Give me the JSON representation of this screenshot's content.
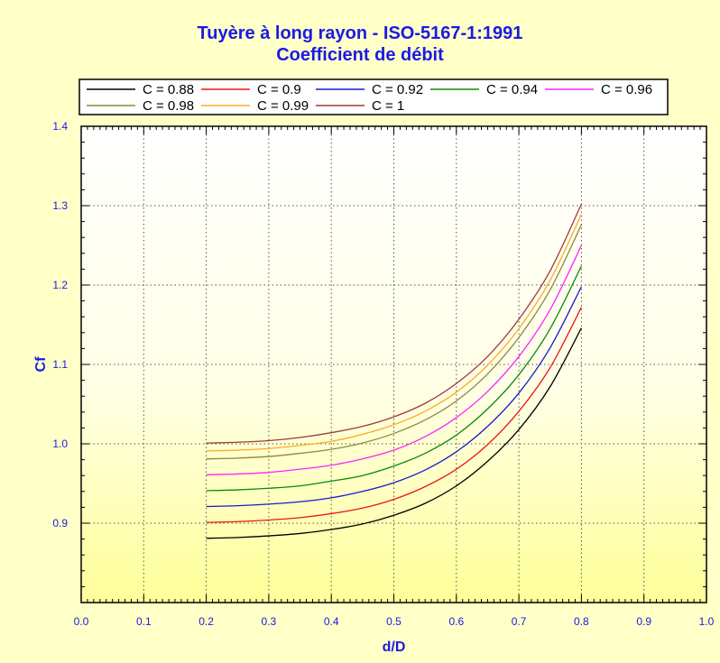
{
  "chart_data": {
    "type": "line",
    "title": "Tuyère à long rayon - ISO-5167-1:1991",
    "subtitle": "Coefficient de débit",
    "xlabel": "d/D",
    "ylabel": "Cf",
    "xlim": [
      0.0,
      1.0
    ],
    "ylim": [
      0.8,
      1.4
    ],
    "x_ticks": [
      "0.0",
      "0.1",
      "0.2",
      "0.3",
      "0.4",
      "0.5",
      "0.6",
      "0.7",
      "0.8",
      "0.9",
      "1.0"
    ],
    "y_ticks": [
      "0.9",
      "1.0",
      "1.1",
      "1.2",
      "1.3",
      "1.4"
    ],
    "grid": true,
    "legend_placement": "top",
    "x": [
      0.2,
      0.25,
      0.3,
      0.35,
      0.4,
      0.45,
      0.5,
      0.55,
      0.6,
      0.65,
      0.7,
      0.75,
      0.8
    ],
    "series": [
      {
        "name": "C = 0.88",
        "color": "#000000",
        "values": [
          0.881,
          0.882,
          0.884,
          0.887,
          0.892,
          0.899,
          0.91,
          0.925,
          0.947,
          0.978,
          1.018,
          1.072,
          1.146
        ]
      },
      {
        "name": "C = 0.9",
        "color": "#e81818",
        "values": [
          0.901,
          0.902,
          0.904,
          0.907,
          0.912,
          0.919,
          0.93,
          0.946,
          0.968,
          0.999,
          1.041,
          1.096,
          1.172
        ]
      },
      {
        "name": "C = 0.92",
        "color": "#1a1ad0",
        "values": [
          0.921,
          0.922,
          0.924,
          0.927,
          0.932,
          0.94,
          0.951,
          0.967,
          0.99,
          1.022,
          1.064,
          1.121,
          1.198
        ]
      },
      {
        "name": "C = 0.94",
        "color": "#0a8a0a",
        "values": [
          0.941,
          0.942,
          0.944,
          0.947,
          0.953,
          0.96,
          0.972,
          0.988,
          1.011,
          1.044,
          1.087,
          1.145,
          1.224
        ]
      },
      {
        "name": "C = 0.96",
        "color": "#ff22ff",
        "values": [
          0.961,
          0.962,
          0.964,
          0.968,
          0.973,
          0.981,
          0.992,
          1.009,
          1.033,
          1.066,
          1.11,
          1.169,
          1.25
        ]
      },
      {
        "name": "C = 0.98",
        "color": "#8a8a3a",
        "values": [
          0.981,
          0.982,
          0.984,
          0.988,
          0.993,
          1.001,
          1.013,
          1.03,
          1.054,
          1.088,
          1.134,
          1.194,
          1.276
        ]
      },
      {
        "name": "C = 0.99",
        "color": "#ffaa22",
        "values": [
          0.991,
          0.992,
          0.994,
          0.998,
          1.003,
          1.012,
          1.024,
          1.041,
          1.065,
          1.099,
          1.145,
          1.206,
          1.289
        ]
      },
      {
        "name": "C = 1",
        "color": "#a03a3a",
        "values": [
          1.001,
          1.002,
          1.004,
          1.008,
          1.014,
          1.022,
          1.034,
          1.051,
          1.076,
          1.11,
          1.157,
          1.218,
          1.302
        ]
      }
    ]
  }
}
